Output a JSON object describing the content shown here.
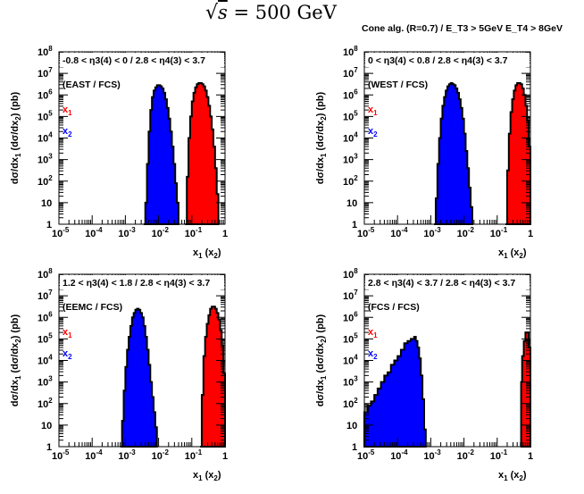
{
  "header": {
    "title_expr": "√s = 500 GeV",
    "title_sqrt": "s",
    "title_rest": "= 500 GeV",
    "subtitle": "Cone alg. (R=0.7) / E_T3 > 5GeV  E_T4 > 8GeV"
  },
  "colors": {
    "x1": "#ff0000",
    "x2": "#0000ff",
    "outline": "#000000",
    "frame": "#000000"
  },
  "chart_data": [
    {
      "type": "histogram",
      "scale": "log-log",
      "title": "-0.8 < η3(4) < 0 / 2.8 < η4(3) < 3.7",
      "label": "(EAST / FCS)",
      "legend": [
        "x1",
        "x2"
      ],
      "xlabel": "x1 (x2)",
      "ylabel": "dσ/dx1 (dσ/dx2) (pb)",
      "xlim_log10": [
        -5,
        0
      ],
      "ylim_log10": [
        0,
        8
      ],
      "xticks": [
        "10^-5",
        "10^-4",
        "10^-3",
        "10^-2",
        "10^-1",
        "1"
      ],
      "yticks": [
        "1",
        "10",
        "10^2",
        "10^3",
        "10^4",
        "10^5",
        "10^6",
        "10^7",
        "10^8"
      ],
      "series": [
        {
          "name": "x2",
          "color": "#0000ff",
          "points_log10": [
            [
              -2.45,
              0
            ],
            [
              -2.4,
              1.0
            ],
            [
              -2.35,
              2.8
            ],
            [
              -2.3,
              4.3
            ],
            [
              -2.25,
              5.3
            ],
            [
              -2.2,
              5.9
            ],
            [
              -2.15,
              6.2
            ],
            [
              -2.1,
              6.35
            ],
            [
              -2.05,
              6.45
            ],
            [
              -2.0,
              6.45
            ],
            [
              -1.95,
              6.4
            ],
            [
              -1.9,
              6.3
            ],
            [
              -1.85,
              6.1
            ],
            [
              -1.8,
              5.8
            ],
            [
              -1.75,
              5.4
            ],
            [
              -1.7,
              4.9
            ],
            [
              -1.65,
              4.3
            ],
            [
              -1.6,
              3.6
            ],
            [
              -1.55,
              2.8
            ],
            [
              -1.5,
              1.9
            ],
            [
              -1.45,
              1.0
            ],
            [
              -1.4,
              0
            ]
          ]
        },
        {
          "name": "x1",
          "color": "#ff0000",
          "points_log10": [
            [
              -1.2,
              0
            ],
            [
              -1.15,
              2.2
            ],
            [
              -1.1,
              4.0
            ],
            [
              -1.05,
              5.0
            ],
            [
              -1.0,
              5.7
            ],
            [
              -0.95,
              6.1
            ],
            [
              -0.9,
              6.35
            ],
            [
              -0.85,
              6.5
            ],
            [
              -0.8,
              6.55
            ],
            [
              -0.75,
              6.55
            ],
            [
              -0.7,
              6.5
            ],
            [
              -0.65,
              6.4
            ],
            [
              -0.6,
              6.2
            ],
            [
              -0.55,
              5.9
            ],
            [
              -0.5,
              5.5
            ],
            [
              -0.45,
              5.0
            ],
            [
              -0.4,
              4.4
            ],
            [
              -0.35,
              3.6
            ],
            [
              -0.3,
              2.6
            ],
            [
              -0.25,
              1.4
            ],
            [
              -0.2,
              0
            ]
          ]
        }
      ]
    },
    {
      "type": "histogram",
      "scale": "log-log",
      "title": "0 < η3(4) < 0.8 / 2.8 < η4(3) < 3.7",
      "label": "(WEST / FCS)",
      "legend": [
        "x1",
        "x2"
      ],
      "xlabel": "x1 (x2)",
      "ylabel": "dσ/dx1 (dσ/dx2) (pb)",
      "xlim_log10": [
        -5,
        0
      ],
      "ylim_log10": [
        0,
        8
      ],
      "xticks": [
        "10^-5",
        "10^-4",
        "10^-3",
        "10^-2",
        "10^-1",
        "1"
      ],
      "yticks": [
        "1",
        "10",
        "10^2",
        "10^3",
        "10^4",
        "10^5",
        "10^6",
        "10^7",
        "10^8"
      ],
      "series": [
        {
          "name": "x2",
          "color": "#0000ff",
          "points_log10": [
            [
              -2.9,
              0
            ],
            [
              -2.85,
              1.2
            ],
            [
              -2.8,
              2.8
            ],
            [
              -2.75,
              4.0
            ],
            [
              -2.7,
              4.9
            ],
            [
              -2.65,
              5.5
            ],
            [
              -2.6,
              5.9
            ],
            [
              -2.55,
              6.2
            ],
            [
              -2.5,
              6.4
            ],
            [
              -2.45,
              6.5
            ],
            [
              -2.4,
              6.55
            ],
            [
              -2.35,
              6.5
            ],
            [
              -2.3,
              6.45
            ],
            [
              -2.25,
              6.3
            ],
            [
              -2.2,
              6.1
            ],
            [
              -2.15,
              5.8
            ],
            [
              -2.1,
              5.4
            ],
            [
              -2.05,
              4.9
            ],
            [
              -2.0,
              4.2
            ],
            [
              -1.95,
              3.4
            ],
            [
              -1.9,
              2.6
            ],
            [
              -1.85,
              1.7
            ],
            [
              -1.8,
              0.8
            ],
            [
              -1.75,
              0
            ]
          ]
        },
        {
          "name": "x1",
          "color": "#ff0000",
          "points_log10": [
            [
              -0.75,
              0
            ],
            [
              -0.7,
              2.5
            ],
            [
              -0.65,
              4.2
            ],
            [
              -0.6,
              5.2
            ],
            [
              -0.55,
              5.8
            ],
            [
              -0.5,
              6.2
            ],
            [
              -0.45,
              6.45
            ],
            [
              -0.4,
              6.55
            ],
            [
              -0.35,
              6.55
            ],
            [
              -0.3,
              6.5
            ],
            [
              -0.25,
              6.3
            ],
            [
              -0.2,
              6.0
            ],
            [
              -0.15,
              5.5
            ],
            [
              -0.1,
              4.8
            ],
            [
              -0.05,
              3.6
            ],
            [
              0.0,
              0
            ]
          ]
        }
      ]
    },
    {
      "type": "histogram",
      "scale": "log-log",
      "title": "1.2 < η3(4) < 1.8 / 2.8 < η4(3) < 3.7",
      "label": "(EEMC / FCS)",
      "legend": [
        "x1",
        "x2"
      ],
      "xlabel": "x1 (x2)",
      "ylabel": "dσ/dx1 (dσ/dx2) (pb)",
      "xlim_log10": [
        -5,
        0
      ],
      "ylim_log10": [
        0,
        8
      ],
      "xticks": [
        "10^-5",
        "10^-4",
        "10^-3",
        "10^-2",
        "10^-1",
        "1"
      ],
      "yticks": [
        "1",
        "10",
        "10^2",
        "10^3",
        "10^4",
        "10^5",
        "10^6",
        "10^7",
        "10^8"
      ],
      "series": [
        {
          "name": "x2",
          "color": "#0000ff",
          "points_log10": [
            [
              -3.15,
              0
            ],
            [
              -3.1,
              1.2
            ],
            [
              -3.05,
              2.6
            ],
            [
              -3.0,
              3.7
            ],
            [
              -2.95,
              4.5
            ],
            [
              -2.9,
              5.1
            ],
            [
              -2.85,
              5.6
            ],
            [
              -2.8,
              6.0
            ],
            [
              -2.75,
              6.2
            ],
            [
              -2.7,
              6.35
            ],
            [
              -2.65,
              6.4
            ],
            [
              -2.6,
              6.35
            ],
            [
              -2.55,
              6.2
            ],
            [
              -2.5,
              6.0
            ],
            [
              -2.45,
              5.6
            ],
            [
              -2.4,
              5.1
            ],
            [
              -2.35,
              4.5
            ],
            [
              -2.3,
              3.8
            ],
            [
              -2.25,
              3.0
            ],
            [
              -2.2,
              2.3
            ],
            [
              -2.15,
              1.6
            ],
            [
              -2.1,
              0.9
            ],
            [
              -2.05,
              0
            ]
          ]
        },
        {
          "name": "x1",
          "color": "#ff0000",
          "points_log10": [
            [
              -0.75,
              0
            ],
            [
              -0.7,
              2.4
            ],
            [
              -0.65,
              4.2
            ],
            [
              -0.6,
              5.1
            ],
            [
              -0.55,
              5.7
            ],
            [
              -0.5,
              6.1
            ],
            [
              -0.45,
              6.4
            ],
            [
              -0.4,
              6.5
            ],
            [
              -0.35,
              6.5
            ],
            [
              -0.3,
              6.4
            ],
            [
              -0.25,
              6.2
            ],
            [
              -0.2,
              5.9
            ],
            [
              -0.15,
              5.4
            ],
            [
              -0.1,
              4.7
            ],
            [
              -0.05,
              3.4
            ],
            [
              0.0,
              0
            ]
          ]
        }
      ]
    },
    {
      "type": "histogram",
      "scale": "log-log",
      "title": "2.8 < η3(4) < 3.7 / 2.8 < η4(3) < 3.7",
      "label": "(FCS / FCS)",
      "legend": [
        "x1",
        "x2"
      ],
      "xlabel": "x1 (x2)",
      "ylabel": "dσ/dx1 (dσ/dx2) (pb)",
      "xlim_log10": [
        -5,
        0
      ],
      "ylim_log10": [
        0,
        8
      ],
      "xticks": [
        "10^-5",
        "10^-4",
        "10^-3",
        "10^-2",
        "10^-1",
        "1"
      ],
      "yticks": [
        "1",
        "10",
        "10^2",
        "10^3",
        "10^4",
        "10^5",
        "10^6",
        "10^7",
        "10^8"
      ],
      "series": [
        {
          "name": "x2",
          "color": "#0000ff",
          "points_log10": [
            [
              -5.0,
              0
            ],
            [
              -5.0,
              1.6
            ],
            [
              -4.9,
              1.9
            ],
            [
              -4.8,
              2.1
            ],
            [
              -4.7,
              2.4
            ],
            [
              -4.6,
              2.7
            ],
            [
              -4.5,
              3.0
            ],
            [
              -4.4,
              3.3
            ],
            [
              -4.3,
              3.45
            ],
            [
              -4.2,
              3.8
            ],
            [
              -4.1,
              4.0
            ],
            [
              -4.0,
              4.2
            ],
            [
              -3.9,
              4.5
            ],
            [
              -3.8,
              4.8
            ],
            [
              -3.7,
              4.9
            ],
            [
              -3.6,
              5.0
            ],
            [
              -3.5,
              5.1
            ],
            [
              -3.45,
              4.9
            ],
            [
              -3.4,
              4.6
            ],
            [
              -3.35,
              4.1
            ],
            [
              -3.3,
              3.3
            ],
            [
              -3.25,
              2.2
            ],
            [
              -3.2,
              0.8
            ],
            [
              -3.15,
              0
            ]
          ]
        },
        {
          "name": "x1",
          "color": "#ff0000",
          "points_log10": [
            [
              -0.3,
              0
            ],
            [
              -0.28,
              3.0
            ],
            [
              -0.25,
              4.2
            ],
            [
              -0.2,
              4.9
            ],
            [
              -0.15,
              5.3
            ],
            [
              -0.1,
              5.3
            ],
            [
              -0.05,
              4.6
            ],
            [
              0.0,
              0
            ]
          ]
        }
      ]
    }
  ]
}
